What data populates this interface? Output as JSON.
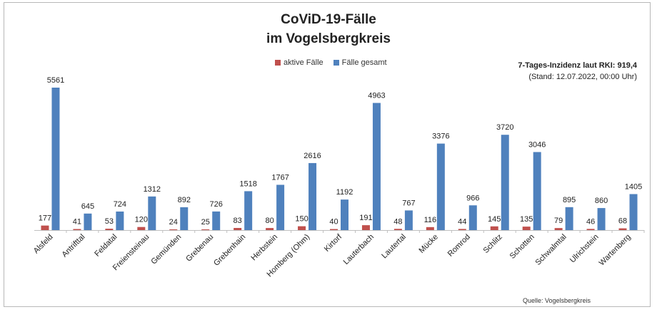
{
  "title_line1": "CoViD-19-Fälle",
  "title_line2": "im Vogelsbergkreis",
  "incidence_label": "7-Tages-Inzidenz laut RKI: 919,4",
  "incidence_date": "(Stand: 12.07.2022, 00:00 Uhr)",
  "source": "Quelle: Vogelsbergkreis",
  "colors": {
    "active": "#c0504d",
    "total": "#4f81bd"
  },
  "chart_data": {
    "type": "bar",
    "categories": [
      "Alsfeld",
      "Antrifttal",
      "Feldatal",
      "Freiensteinau",
      "Gemünden",
      "Grebenau",
      "Grebenhain",
      "Herbstein",
      "Homberg (Ohm)",
      "Kirtorf",
      "Lauterbach",
      "Lautertal",
      "Mücke",
      "Romrod",
      "Schlitz",
      "Schotten",
      "Schwalmtal",
      "Ulrichstein",
      "Wartenberg"
    ],
    "series": [
      {
        "name": "aktive Fälle",
        "values": [
          177,
          41,
          53,
          120,
          24,
          25,
          83,
          80,
          150,
          40,
          191,
          48,
          116,
          44,
          145,
          135,
          79,
          46,
          68
        ]
      },
      {
        "name": "Fälle gesamt",
        "values": [
          5561,
          645,
          724,
          1312,
          892,
          726,
          1518,
          1767,
          2616,
          1192,
          4963,
          767,
          3376,
          966,
          3720,
          3046,
          895,
          860,
          1405
        ]
      }
    ],
    "ylim": [
      0,
      5561
    ],
    "legend": "top-center"
  }
}
